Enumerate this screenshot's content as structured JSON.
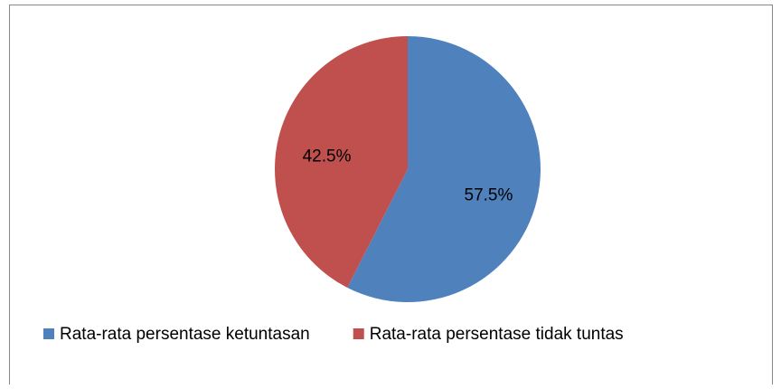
{
  "chart_data": {
    "type": "pie",
    "categories": [
      "Rata-rata persentase ketuntasan",
      "Rata-rata persentase tidak tuntas"
    ],
    "values": [
      57.5,
      42.5
    ],
    "value_labels": [
      "57.5%",
      "42.5%"
    ],
    "colors": [
      "#4f81bd",
      "#c0504d"
    ],
    "legend": "bottom"
  }
}
